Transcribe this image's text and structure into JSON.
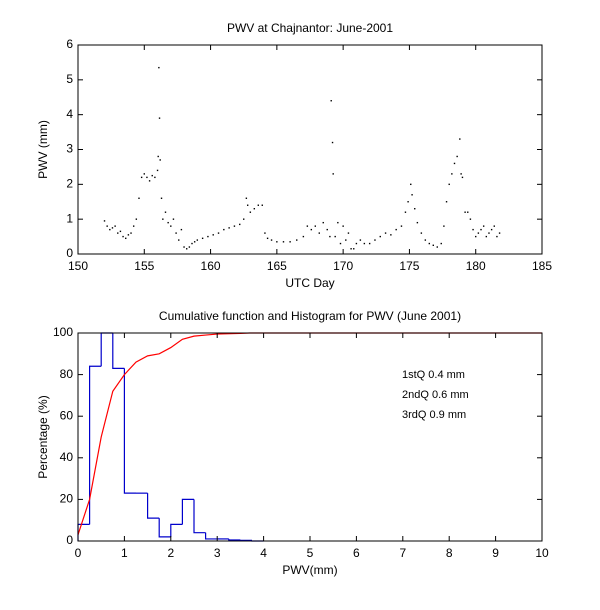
{
  "chart_data": [
    {
      "type": "scatter",
      "title": "PWV at Chajnantor: June-2001",
      "x_label": "UTC Day",
      "y_label": "PWV (mm)",
      "color": "#000000",
      "x": [
        152.0,
        152.2,
        152.4,
        152.6,
        152.8,
        153.0,
        153.2,
        153.4,
        153.6,
        153.8,
        154.0,
        154.2,
        154.4,
        154.6,
        154.8,
        155.0,
        155.2,
        155.4,
        155.6,
        155.8,
        156.0,
        156.05,
        156.1,
        156.15,
        156.2,
        156.3,
        156.4,
        156.6,
        156.8,
        157.0,
        157.2,
        157.4,
        157.6,
        157.8,
        158.0,
        158.2,
        158.4,
        158.6,
        158.8,
        159.0,
        159.4,
        159.8,
        160.2,
        160.6,
        161.0,
        161.4,
        161.8,
        162.2,
        162.5,
        162.7,
        162.8,
        163.0,
        163.3,
        163.6,
        163.9,
        164.1,
        164.3,
        164.6,
        165.0,
        165.5,
        166.0,
        166.5,
        167.0,
        167.3,
        167.6,
        167.9,
        168.2,
        168.5,
        168.8,
        169.0,
        169.1,
        169.2,
        169.25,
        169.4,
        169.6,
        169.8,
        170.0,
        170.2,
        170.4,
        170.6,
        170.8,
        171.0,
        171.3,
        171.6,
        172.0,
        172.4,
        172.8,
        173.2,
        173.6,
        174.0,
        174.4,
        174.7,
        174.9,
        175.1,
        175.2,
        175.4,
        175.6,
        175.9,
        176.2,
        176.5,
        176.8,
        177.1,
        177.4,
        177.6,
        177.8,
        178.0,
        178.2,
        178.4,
        178.6,
        178.8,
        178.9,
        179.0,
        179.2,
        179.4,
        179.6,
        179.8,
        180.0,
        180.2,
        180.4,
        180.6,
        180.8,
        181.0,
        181.2,
        181.4,
        181.6,
        181.8
      ],
      "values": [
        0.95,
        0.8,
        0.7,
        0.75,
        0.8,
        0.6,
        0.65,
        0.5,
        0.45,
        0.55,
        0.6,
        0.8,
        1.0,
        1.6,
        2.2,
        2.3,
        2.2,
        2.1,
        2.25,
        2.2,
        2.4,
        2.8,
        5.35,
        3.9,
        2.7,
        1.6,
        1.0,
        1.2,
        0.9,
        0.8,
        1.0,
        0.6,
        0.4,
        0.7,
        0.2,
        0.15,
        0.2,
        0.3,
        0.35,
        0.4,
        0.45,
        0.5,
        0.55,
        0.6,
        0.7,
        0.75,
        0.8,
        0.85,
        1.0,
        1.6,
        1.4,
        1.2,
        1.3,
        1.4,
        1.4,
        0.6,
        0.45,
        0.4,
        0.35,
        0.35,
        0.35,
        0.4,
        0.5,
        0.8,
        0.7,
        0.8,
        0.6,
        0.9,
        0.7,
        0.5,
        4.4,
        3.2,
        2.3,
        0.5,
        0.9,
        0.3,
        0.8,
        0.4,
        0.6,
        0.15,
        0.15,
        0.3,
        0.4,
        0.3,
        0.3,
        0.4,
        0.5,
        0.6,
        0.55,
        0.7,
        0.8,
        1.2,
        1.5,
        2.0,
        1.7,
        1.3,
        0.9,
        0.6,
        0.4,
        0.3,
        0.25,
        0.2,
        0.3,
        0.8,
        1.5,
        2.0,
        2.3,
        2.6,
        2.8,
        3.3,
        2.3,
        2.2,
        1.2,
        1.2,
        1.0,
        0.7,
        0.5,
        0.6,
        0.7,
        0.8,
        0.5,
        0.6,
        0.7,
        0.8,
        0.5,
        0.6
      ],
      "xlim": [
        150,
        185
      ],
      "xticks": [
        150,
        155,
        160,
        165,
        170,
        175,
        180,
        185
      ],
      "ylim": [
        0,
        6
      ],
      "yticks": [
        0,
        1,
        2,
        3,
        4,
        5,
        6
      ]
    },
    {
      "type": "histogram",
      "title": "Cumulative function and Histogram for PWV (June 2001)",
      "x_label": "PWV(mm)",
      "y_label": "Percentage (%)",
      "color": "#0000cc",
      "bins": [
        0,
        0.25,
        0.5,
        0.75,
        1.0,
        1.25,
        1.5,
        1.75,
        2.0,
        2.25,
        2.5,
        2.75,
        3.0,
        3.25,
        3.5,
        3.75,
        4.0
      ],
      "values": [
        8,
        84,
        100,
        83,
        23,
        23,
        11,
        2,
        8,
        20,
        4,
        1,
        1,
        0.5,
        0.3,
        0
      ],
      "cumulative": {
        "color": "#ff0000",
        "x": [
          0,
          0.25,
          0.5,
          0.75,
          1.0,
          1.25,
          1.5,
          1.75,
          2.0,
          2.25,
          2.5,
          2.75,
          3.0,
          3.5,
          3.7,
          10
        ],
        "values": [
          3,
          20,
          50,
          72,
          80,
          86,
          89,
          90,
          93,
          97,
          98.5,
          99,
          99.5,
          99.8,
          100,
          100
        ]
      },
      "annotations": [
        "1stQ 0.4 mm",
        "2ndQ 0.6 mm",
        "3rdQ 0.9 mm"
      ],
      "annotation_color": "#ff0000",
      "xlim": [
        0,
        10
      ],
      "xticks": [
        0,
        1,
        2,
        3,
        4,
        5,
        6,
        7,
        8,
        9,
        10
      ],
      "ylim": [
        0,
        100
      ],
      "yticks": [
        0,
        20,
        40,
        60,
        80,
        100
      ]
    }
  ]
}
